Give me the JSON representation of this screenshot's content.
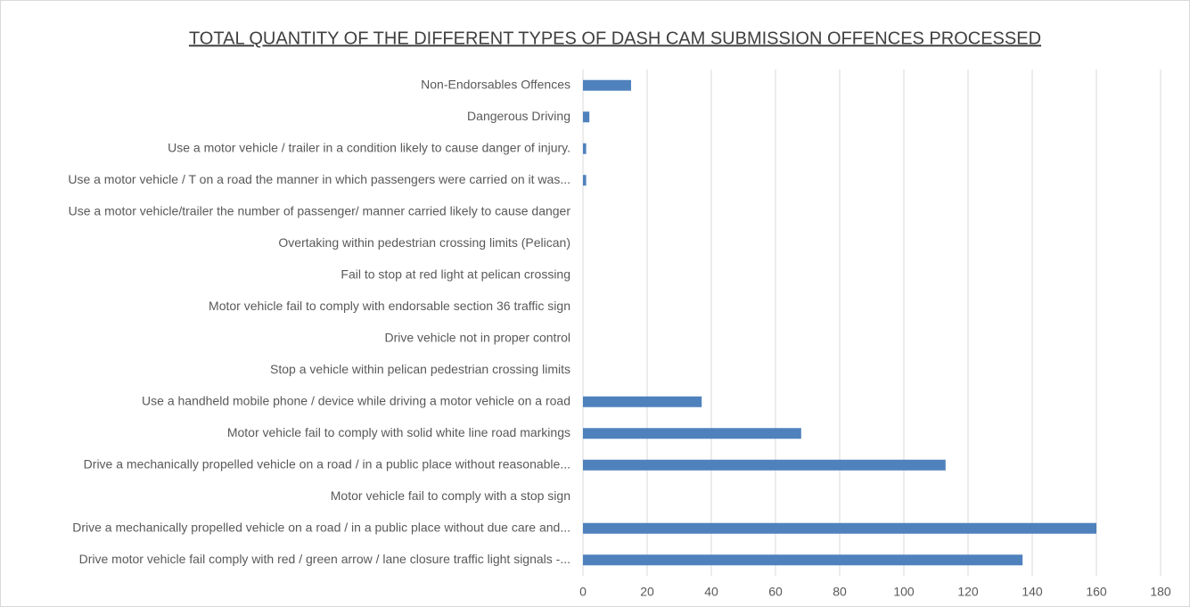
{
  "chart_data": {
    "type": "bar",
    "orientation": "horizontal",
    "title": "TOTAL QUANTITY OF THE DIFFERENT TYPES OF DASH CAM SUBMISSION OFFENCES PROCESSED",
    "categories": [
      "Non-Endorsables Offences",
      "Dangerous Driving",
      "Use a motor vehicle / trailer in a condition likely to cause danger of injury.",
      "Use a motor vehicle / T on a road the manner in which passengers were carried on it was...",
      "Use a motor vehicle/trailer the number of passenger/ manner carried likely to cause danger",
      "Overtaking within pedestrian crossing limits (Pelican)",
      "Fail to stop at red light at pelican crossing",
      "Motor vehicle fail to comply with endorsable section 36 traffic sign",
      "Drive vehicle not in proper control",
      "Stop a vehicle within pelican pedestrian crossing limits",
      "Use a handheld mobile phone / device while driving a motor vehicle on a road",
      "Motor vehicle fail to comply with solid white line road markings",
      "Drive a mechanically propelled vehicle on a road / in a public place without reasonable...",
      "Motor vehicle fail to comply with a stop sign",
      "Drive a mechanically propelled vehicle on a road / in a public place without due care and...",
      "Drive motor vehicle fail comply with red / green arrow / lane closure traffic light signals -..."
    ],
    "values": [
      15,
      2,
      1,
      1,
      0,
      0,
      0,
      0,
      0,
      0,
      37,
      68,
      113,
      0,
      160,
      137
    ],
    "color": "#4f81bd",
    "xlim": [
      0,
      180
    ],
    "xticks": [
      0,
      20,
      40,
      60,
      80,
      100,
      120,
      140,
      160,
      180
    ],
    "grid": true
  }
}
